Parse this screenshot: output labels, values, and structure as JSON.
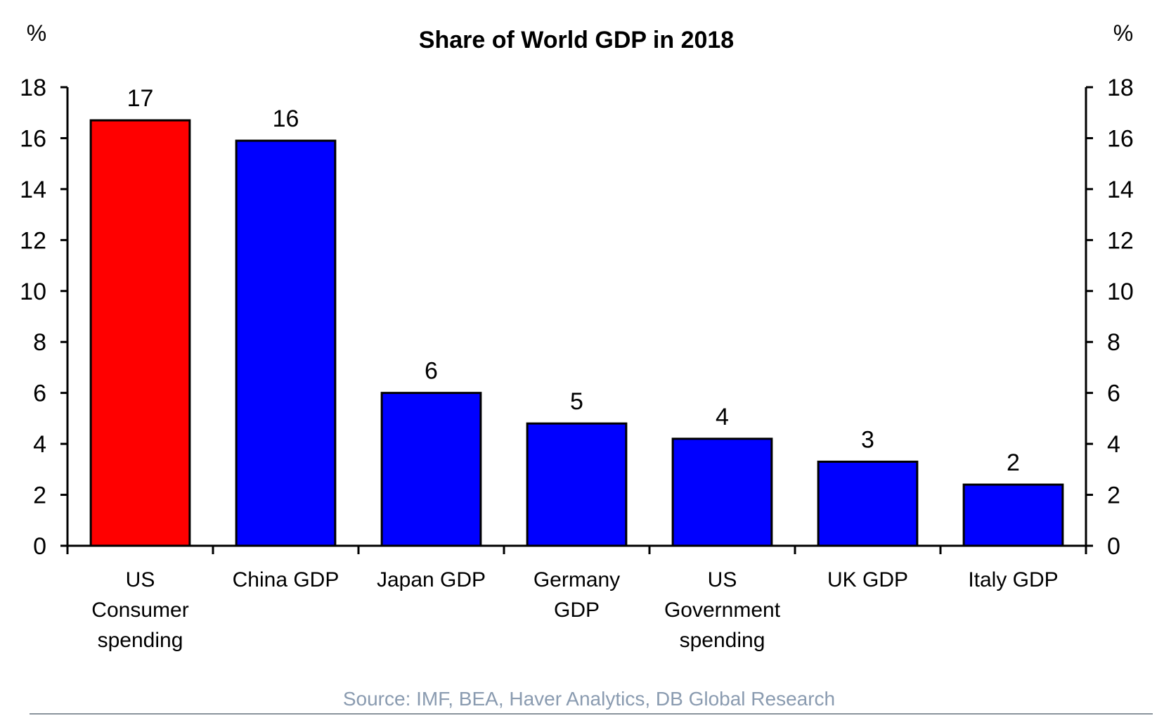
{
  "chart_data": {
    "type": "bar",
    "title": "Share of  World GDP in 2018",
    "ylabel_left": "%",
    "ylabel_right": "%",
    "xlabel": "",
    "ylim": [
      0,
      18
    ],
    "yticks": [
      0,
      2,
      4,
      6,
      8,
      10,
      12,
      14,
      16,
      18
    ],
    "grid": false,
    "legend": "none",
    "categories": [
      [
        "US",
        "Consumer",
        "spending"
      ],
      [
        "China GDP"
      ],
      [
        "Japan GDP"
      ],
      [
        "Germany",
        "GDP"
      ],
      [
        "US",
        "Government",
        "spending"
      ],
      [
        "UK GDP"
      ],
      [
        "Italy GDP"
      ]
    ],
    "values": [
      16.7,
      15.9,
      6.0,
      4.8,
      4.2,
      3.3,
      2.4
    ],
    "data_labels": [
      "17",
      "16",
      "6",
      "5",
      "4",
      "3",
      "2"
    ],
    "colors": [
      "#ff0000",
      "#0000ff",
      "#0000ff",
      "#0000ff",
      "#0000ff",
      "#0000ff",
      "#0000ff"
    ],
    "source": "Source: IMF, BEA, Haver Analytics, DB Global Research"
  }
}
